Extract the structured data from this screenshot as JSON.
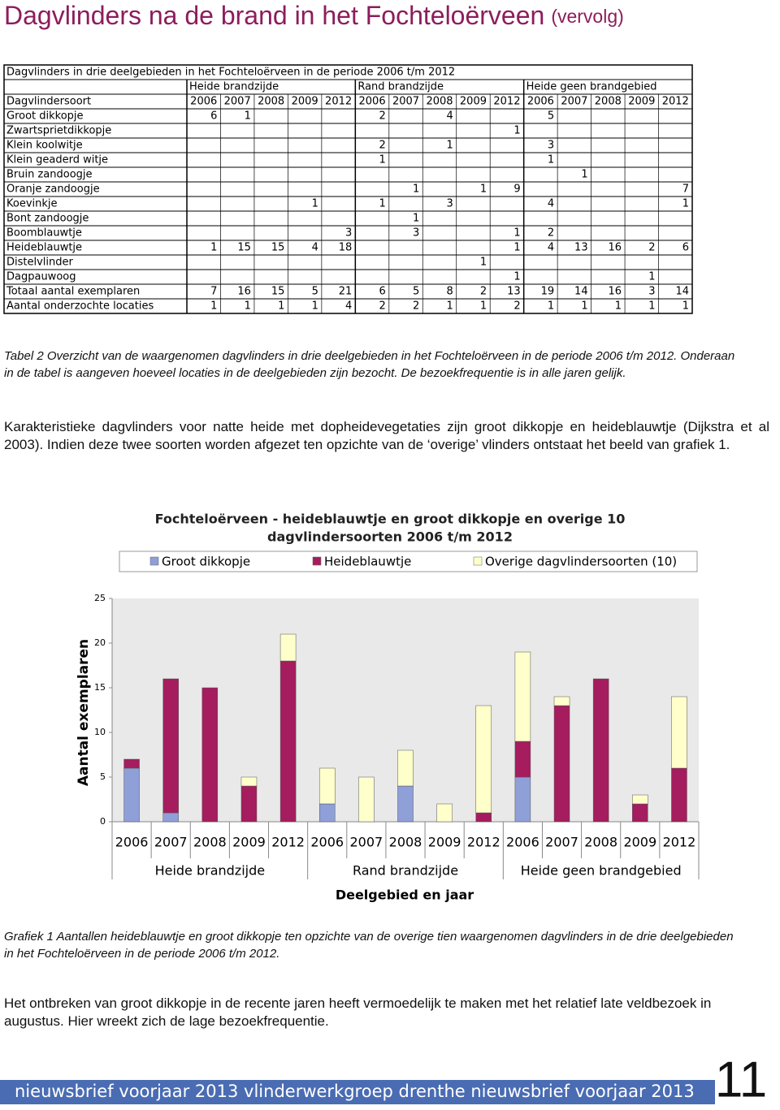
{
  "header": {
    "title": "Dagvlinders na de brand in het Fochteloërveen",
    "subtitle": "(vervolg)"
  },
  "table": {
    "title": "Dagvlinders in drie deelgebieden in het Fochteloërveen in de periode 2006 t/m 2012",
    "groups": [
      "Heide brandzijde",
      "Rand brandzijde",
      "Heide geen brandgebied"
    ],
    "header": [
      "Dagvlindersoort",
      "2006",
      "2007",
      "2008",
      "2009",
      "2012",
      "2006",
      "2007",
      "2008",
      "2009",
      "2012",
      "2006",
      "2007",
      "2008",
      "2009",
      "2012"
    ],
    "rows": [
      [
        "Groot dikkopje",
        6,
        1,
        null,
        null,
        null,
        2,
        null,
        4,
        null,
        null,
        5,
        null,
        null,
        null,
        null
      ],
      [
        "Zwartsprietdikkopje",
        null,
        null,
        null,
        null,
        null,
        null,
        null,
        null,
        null,
        1,
        null,
        null,
        null,
        null,
        null
      ],
      [
        "Klein koolwitje",
        null,
        null,
        null,
        null,
        null,
        2,
        null,
        1,
        null,
        null,
        3,
        null,
        null,
        null,
        null
      ],
      [
        "Klein geaderd witje",
        null,
        null,
        null,
        null,
        null,
        1,
        null,
        null,
        null,
        null,
        1,
        null,
        null,
        null,
        null
      ],
      [
        "Bruin zandoogje",
        null,
        null,
        null,
        null,
        null,
        null,
        null,
        null,
        null,
        null,
        null,
        1,
        null,
        null,
        null
      ],
      [
        "Oranje zandoogje",
        null,
        null,
        null,
        null,
        null,
        null,
        1,
        null,
        1,
        9,
        null,
        null,
        null,
        null,
        7
      ],
      [
        "Koevinkje",
        null,
        null,
        null,
        1,
        null,
        1,
        null,
        3,
        null,
        null,
        4,
        null,
        null,
        null,
        1
      ],
      [
        "Bont zandoogje",
        null,
        null,
        null,
        null,
        null,
        null,
        1,
        null,
        null,
        null,
        null,
        null,
        null,
        null,
        null
      ],
      [
        "Boomblauwtje",
        null,
        null,
        null,
        null,
        3,
        null,
        3,
        null,
        null,
        1,
        2,
        null,
        null,
        null,
        null
      ],
      [
        "Heideblauwtje",
        1,
        15,
        15,
        4,
        18,
        null,
        null,
        null,
        null,
        1,
        4,
        13,
        16,
        2,
        6
      ],
      [
        "Distelvlinder",
        null,
        null,
        null,
        null,
        null,
        null,
        null,
        null,
        1,
        null,
        null,
        null,
        null,
        null,
        null
      ],
      [
        "Dagpauwoog",
        null,
        null,
        null,
        null,
        null,
        null,
        null,
        null,
        null,
        1,
        null,
        null,
        null,
        1,
        null
      ],
      [
        "Totaal aantal exemplaren",
        7,
        16,
        15,
        5,
        21,
        6,
        5,
        8,
        2,
        13,
        19,
        14,
        16,
        3,
        14
      ],
      [
        "Aantal onderzochte locaties",
        1,
        1,
        1,
        1,
        4,
        2,
        2,
        1,
        1,
        2,
        1,
        1,
        1,
        1,
        1
      ]
    ]
  },
  "caption_table": "Tabel 2 Overzicht van de waargenomen dagvlinders in drie deelgebieden in het Fochteloërveen in de periode 2006 t/m 2012. Onderaan in de tabel is aangeven hoeveel locaties in de deelgebieden zijn bezocht. De bezoekfrequentie is in alle jaren gelijk.",
  "paragraph_1": "Karakteristieke dagvlinders voor natte heide met dopheidevegetaties zijn groot dikkopje en heideblauwtje (Dijkstra et al 2003). Indien deze twee soorten worden afgezet ten opzichte van de ‘overige’ vlinders ontstaat het beeld van grafiek 1.",
  "chart_data": {
    "type": "stacked_bar",
    "title": [
      "Fochteloërveen - heideblauwtje en groot dikkopje en overige 10",
      "dagvlindersoorten 2006 t/m 2012"
    ],
    "ylabel": "Aantal exemplaren",
    "xlabel": "Deelgebied en jaar",
    "groups": [
      "Heide brandzijde",
      "Rand brandzijde",
      "Heide geen brandgebied"
    ],
    "categories": [
      "2006",
      "2007",
      "2008",
      "2009",
      "2012",
      "2006",
      "2007",
      "2008",
      "2009",
      "2012",
      "2006",
      "2007",
      "2008",
      "2009",
      "2012"
    ],
    "series": [
      {
        "name": "Groot dikkopje",
        "color": "#8f9fd8",
        "values": [
          6,
          1,
          0,
          0,
          0,
          2,
          0,
          4,
          0,
          0,
          5,
          0,
          0,
          0,
          0
        ]
      },
      {
        "name": "Heideblauwtje",
        "color": "#a51d5e",
        "values": [
          1,
          15,
          15,
          4,
          18,
          0,
          0,
          0,
          0,
          1,
          4,
          13,
          16,
          2,
          6
        ]
      },
      {
        "name": "Overige dagvlindersoorten (10)",
        "color": "#ffffcc",
        "values": [
          0,
          0,
          0,
          1,
          3,
          4,
          5,
          4,
          2,
          12,
          10,
          1,
          0,
          1,
          8
        ]
      }
    ],
    "ylim": [
      0,
      25
    ],
    "yticks": [
      0,
      5,
      10,
      15,
      20,
      25
    ],
    "legend": "top"
  },
  "caption_chart": "Grafiek 1 Aantallen heideblauwtje en groot dikkopje ten opzichte van de overige tien waargenomen dagvlinders in de drie deelgebieden in het Fochteloërveen in de periode 2006 t/m 2012.",
  "paragraph_2": "Het ontbreken van groot dikkopje in de recente jaren heeft vermoedelijk te maken met het relatief late veldbezoek in augustus. Hier wreekt zich de lage bezoekfrequentie.",
  "footer": {
    "text": "nieuwsbrief voorjaar 2013 vlinderwerkgroep drenthe nieuwsbrief voorjaar 2013",
    "page": "11"
  }
}
